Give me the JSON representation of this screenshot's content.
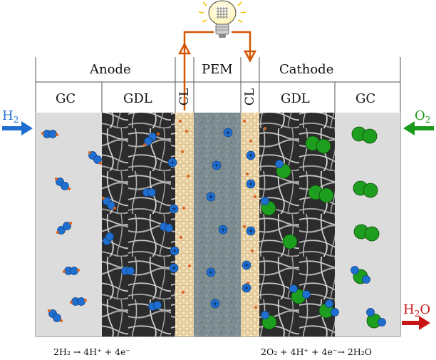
{
  "header": {
    "anode": "Anode",
    "pem": "PEM",
    "cathode": "Cathode"
  },
  "layers": {
    "gc_left": "GC",
    "gdl_left": "GDL",
    "cl_left": "CL",
    "cl_right": "CL",
    "gdl_right": "GDL",
    "gc_right": "GC"
  },
  "gases": {
    "h2_base": "H",
    "h2_sub": "2",
    "o2_base": "O",
    "o2_sub": "2",
    "h2o_base": "H",
    "h2o_sub": "2",
    "h2o_tail": "O"
  },
  "equations": {
    "anode": "2H₂ → 4H⁺ + 4e⁻",
    "cathode": "2O₂ + 4H⁺ + 4e⁻→ 2H₂O"
  },
  "colors": {
    "hydrogen": "#1f6fd1",
    "oxygen": "#1a9a1a",
    "electron": "#d9621e",
    "wire": "#d35400",
    "h2_arrow": "#1f6fd1",
    "o2_arrow": "#1a9a1a",
    "h2o_arrow": "#c81414",
    "gc_fill": "#dcdcdc",
    "cl_fill": "#f1ddb0",
    "pem_fill": "#7f8f93"
  },
  "icons": {
    "bulb": "light-bulb-icon",
    "proton": "proton-plus-icon"
  }
}
